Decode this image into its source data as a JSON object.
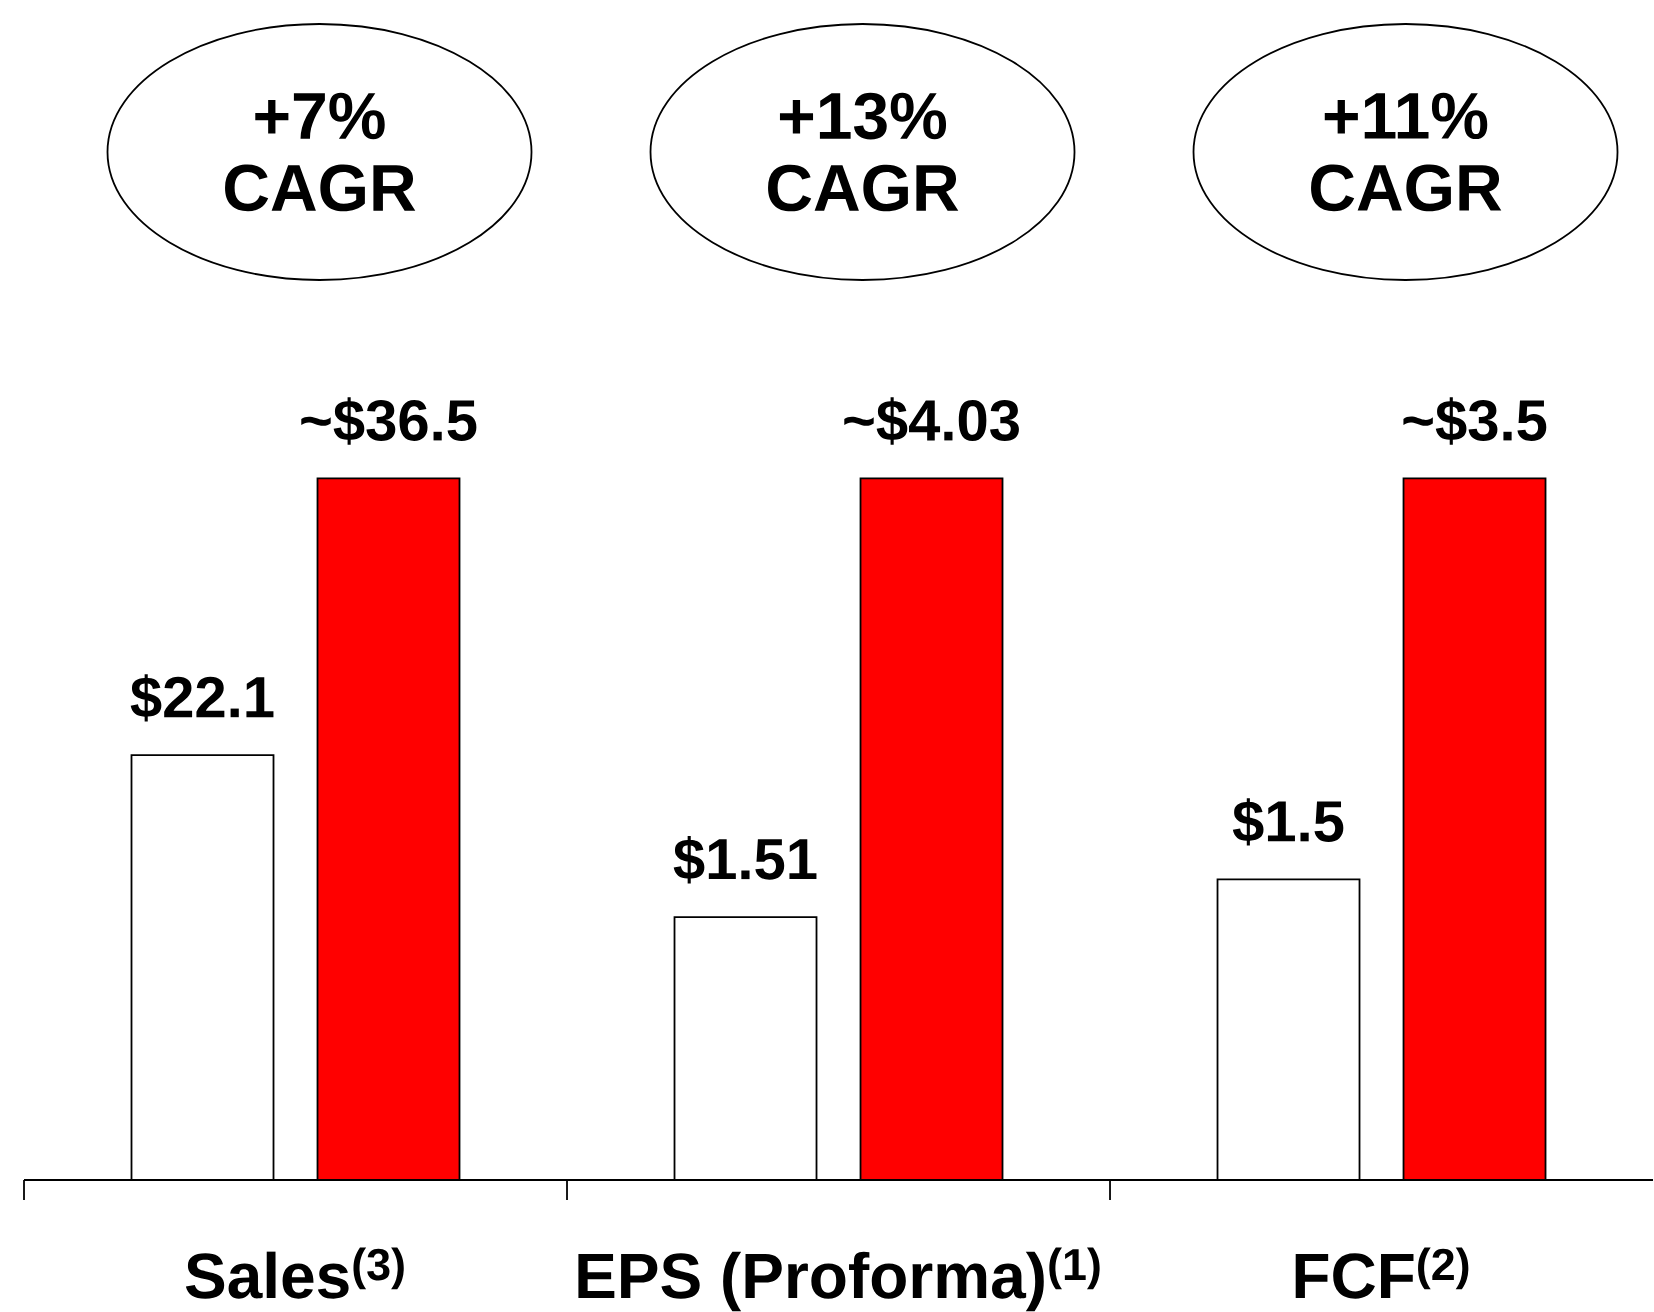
{
  "chart_data": [
    {
      "type": "bar",
      "categories": [
        "Sales$^{(3)}$"
      ],
      "series": [
        {
          "color": "#ffffff",
          "values": [
            22.1
          ],
          "value_labels": [
            "$22.1"
          ]
        },
        {
          "color": "#ff0000",
          "values": [
            36.5
          ],
          "value_labels": [
            "~$36.5"
          ]
        }
      ],
      "annotations": [
        "+7% CAGR"
      ]
    },
    {
      "type": "bar",
      "categories": [
        "EPS (Proforma)$^{(1)}$"
      ],
      "series": [
        {
          "color": "#ffffff",
          "values": [
            1.51
          ],
          "value_labels": [
            "$1.51"
          ]
        },
        {
          "color": "#ff0000",
          "values": [
            4.03
          ],
          "value_labels": [
            "~$4.03"
          ]
        }
      ],
      "annotations": [
        "+13% CAGR"
      ]
    },
    {
      "type": "bar",
      "categories": [
        "FCF$^{(2)}$"
      ],
      "series": [
        {
          "color": "#ffffff",
          "values": [
            1.5
          ],
          "value_labels": [
            "$1.5"
          ]
        },
        {
          "color": "#ff0000",
          "values": [
            3.5
          ],
          "value_labels": [
            "~$3.5"
          ]
        }
      ],
      "annotations": [
        "+11% CAGR"
      ]
    }
  ]
}
